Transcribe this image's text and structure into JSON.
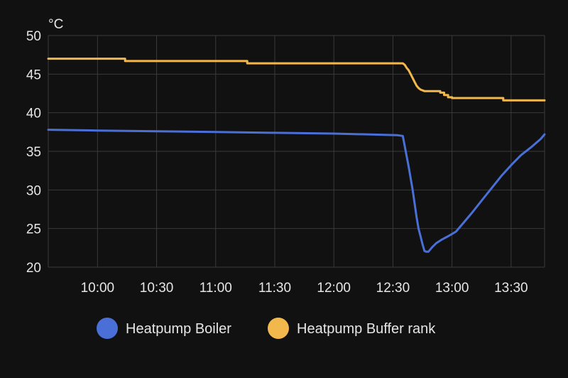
{
  "colors": {
    "background": "#111111",
    "grid": "#3a3a3a",
    "tick_text": "#e6e6e6",
    "legend_text": "#e6e6e6",
    "boiler": "#4a6fd6",
    "buffer": "#f2b84b"
  },
  "chart_data": {
    "type": "line",
    "unit_label": "°C",
    "ylim": [
      20,
      50
    ],
    "y_ticks": [
      "20",
      "25",
      "30",
      "35",
      "40",
      "45",
      "50"
    ],
    "x_range_minutes": [
      575,
      827
    ],
    "x_tick_minutes": [
      600,
      630,
      660,
      690,
      720,
      750,
      780,
      810
    ],
    "x_ticks": [
      "10:00",
      "10:30",
      "11:00",
      "11:30",
      "12:00",
      "12:30",
      "13:00",
      "13:30"
    ],
    "grid": true,
    "legend_position": "bottom",
    "series": [
      {
        "name": "Heatpump Boiler",
        "color": "#4a6fd6",
        "x_minutes": [
          575,
          600,
          630,
          660,
          690,
          720,
          752,
          755,
          758,
          760,
          762,
          763,
          764,
          765,
          766,
          767,
          768,
          770,
          772,
          775,
          778,
          782,
          786,
          790,
          795,
          800,
          805,
          810,
          815,
          820,
          825,
          827
        ],
        "values": [
          37.8,
          37.7,
          37.6,
          37.5,
          37.4,
          37.3,
          37.1,
          37.0,
          33.0,
          30.0,
          26.5,
          25.0,
          24.0,
          23.0,
          22.1,
          22.0,
          22.0,
          22.6,
          23.1,
          23.6,
          24.0,
          24.6,
          25.8,
          27.0,
          28.6,
          30.2,
          31.8,
          33.2,
          34.5,
          35.5,
          36.6,
          37.2
        ]
      },
      {
        "name": "Heatpump Buffer rank",
        "color": "#f2b84b",
        "x_minutes": [
          575,
          614,
          614,
          676,
          676,
          755,
          756,
          757,
          758,
          759,
          760,
          761,
          762,
          763,
          764,
          766,
          770,
          774,
          774,
          776,
          776,
          778,
          778,
          780,
          780,
          806,
          806,
          827
        ],
        "values": [
          47.0,
          47.0,
          46.7,
          46.7,
          46.4,
          46.4,
          46.2,
          45.8,
          45.5,
          45.0,
          44.5,
          44.0,
          43.5,
          43.2,
          43.0,
          42.8,
          42.8,
          42.8,
          42.6,
          42.6,
          42.3,
          42.3,
          42.0,
          42.0,
          41.9,
          41.9,
          41.6,
          41.6
        ]
      }
    ]
  }
}
